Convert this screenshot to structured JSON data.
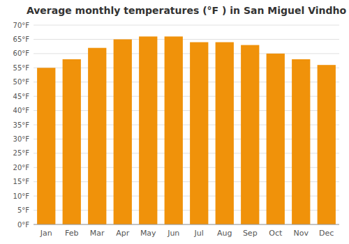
{
  "chart_data": {
    "type": "bar",
    "title": "Average monthly temperatures (°F ) in San Miguel Vindho",
    "categories": [
      "Jan",
      "Feb",
      "Mar",
      "Apr",
      "May",
      "Jun",
      "Jul",
      "Aug",
      "Sep",
      "Oct",
      "Nov",
      "Dec"
    ],
    "values": [
      55,
      58,
      62,
      65,
      66,
      66,
      64,
      64,
      63,
      60,
      58,
      56
    ],
    "color": "#F0920A",
    "ylim": [
      0,
      70
    ],
    "yticks": [
      {
        "value": 0,
        "label": "0°F"
      },
      {
        "value": 5,
        "label": "5°F"
      },
      {
        "value": 10,
        "label": "10°F"
      },
      {
        "value": 15,
        "label": "15°F"
      },
      {
        "value": 20,
        "label": "20°F"
      },
      {
        "value": 25,
        "label": "25°F"
      },
      {
        "value": 30,
        "label": "30°F"
      },
      {
        "value": 35,
        "label": "35°F"
      },
      {
        "value": 40,
        "label": "40°F"
      },
      {
        "value": 45,
        "label": "45°F"
      },
      {
        "value": 50,
        "label": "50°F"
      },
      {
        "value": 55,
        "label": "55°F"
      },
      {
        "value": 60,
        "label": "60°F"
      },
      {
        "value": 65,
        "label": "65°F"
      },
      {
        "value": 70,
        "label": "70°F"
      }
    ],
    "grid": true
  }
}
